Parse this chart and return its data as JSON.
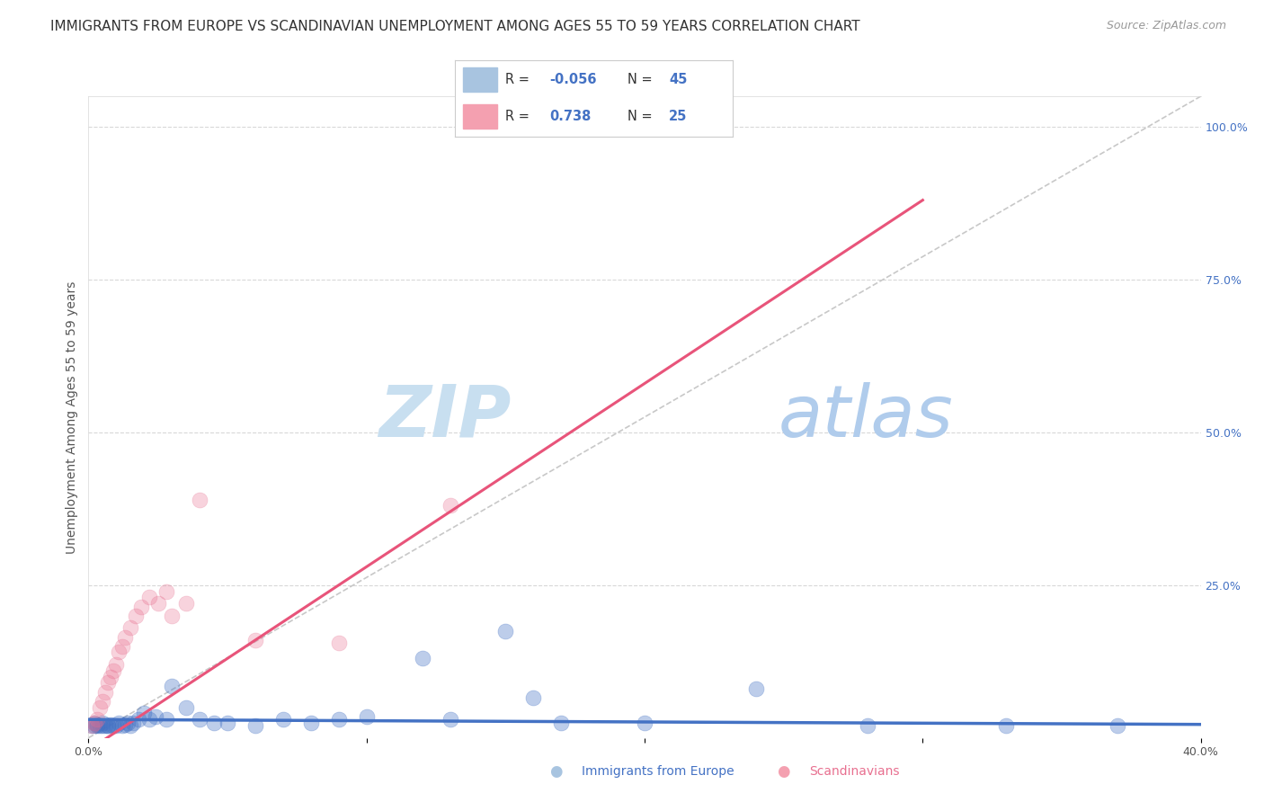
{
  "title": "IMMIGRANTS FROM EUROPE VS SCANDINAVIAN UNEMPLOYMENT AMONG AGES 55 TO 59 YEARS CORRELATION CHART",
  "source": "Source: ZipAtlas.com",
  "ylabel": "Unemployment Among Ages 55 to 59 years",
  "xlim": [
    0.0,
    0.4
  ],
  "ylim": [
    0.0,
    1.05
  ],
  "blue_scatter_x": [
    0.001,
    0.002,
    0.002,
    0.003,
    0.003,
    0.004,
    0.005,
    0.005,
    0.006,
    0.007,
    0.007,
    0.008,
    0.009,
    0.01,
    0.011,
    0.012,
    0.013,
    0.014,
    0.015,
    0.016,
    0.018,
    0.02,
    0.022,
    0.024,
    0.028,
    0.03,
    0.035,
    0.04,
    0.045,
    0.05,
    0.06,
    0.07,
    0.08,
    0.09,
    0.1,
    0.12,
    0.13,
    0.15,
    0.16,
    0.17,
    0.2,
    0.24,
    0.28,
    0.33,
    0.37
  ],
  "blue_scatter_y": [
    0.02,
    0.02,
    0.025,
    0.02,
    0.022,
    0.02,
    0.02,
    0.025,
    0.02,
    0.02,
    0.02,
    0.022,
    0.02,
    0.02,
    0.025,
    0.02,
    0.022,
    0.025,
    0.02,
    0.025,
    0.03,
    0.04,
    0.03,
    0.035,
    0.03,
    0.085,
    0.05,
    0.03,
    0.025,
    0.025,
    0.02,
    0.03,
    0.025,
    0.03,
    0.035,
    0.13,
    0.03,
    0.175,
    0.065,
    0.025,
    0.025,
    0.08,
    0.02,
    0.02,
    0.02
  ],
  "pink_scatter_x": [
    0.001,
    0.002,
    0.003,
    0.004,
    0.005,
    0.006,
    0.007,
    0.008,
    0.009,
    0.01,
    0.011,
    0.012,
    0.013,
    0.015,
    0.017,
    0.019,
    0.022,
    0.025,
    0.028,
    0.03,
    0.035,
    0.04,
    0.06,
    0.09,
    0.13
  ],
  "pink_scatter_y": [
    0.02,
    0.025,
    0.03,
    0.05,
    0.06,
    0.075,
    0.09,
    0.1,
    0.11,
    0.12,
    0.14,
    0.15,
    0.165,
    0.18,
    0.2,
    0.215,
    0.23,
    0.22,
    0.24,
    0.2,
    0.22,
    0.39,
    0.16,
    0.155,
    0.38
  ],
  "blue_line_color": "#4472c4",
  "pink_line_color": "#e8547a",
  "diag_line_color": "#c8c8c8",
  "grid_color": "#d8d8d8",
  "background_color": "#ffffff",
  "watermark_zip_color": "#c8dff0",
  "watermark_atlas_color": "#b8d4ec",
  "title_fontsize": 11,
  "axis_label_fontsize": 10,
  "tick_fontsize": 9,
  "source_fontsize": 9,
  "legend_R_blue": "-0.056",
  "legend_N_blue": "45",
  "legend_R_pink": "0.738",
  "legend_N_pink": "25",
  "pink_line_x0": 0.0,
  "pink_line_y0": -0.02,
  "pink_line_x1": 0.3,
  "pink_line_y1": 0.88,
  "blue_line_x0": 0.0,
  "blue_line_y0": 0.03,
  "blue_line_x1": 0.4,
  "blue_line_y1": 0.022
}
